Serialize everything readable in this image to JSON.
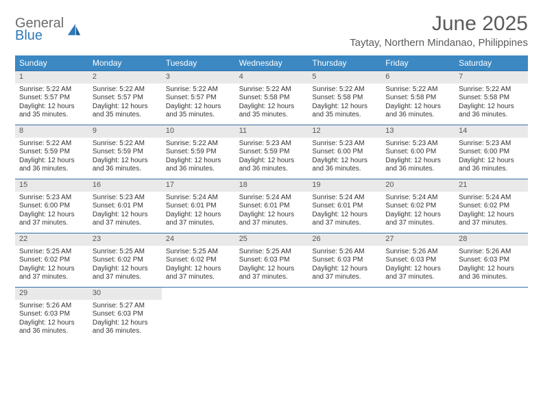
{
  "brand": {
    "general": "General",
    "blue": "Blue"
  },
  "title": "June 2025",
  "location": "Taytay, Northern Mindanao, Philippines",
  "colors": {
    "header_bg": "#3b88c3",
    "header_text": "#ffffff",
    "daynum_bg": "#e9e9e9",
    "week_border": "#2f6fa3",
    "title_color": "#5a5a5a",
    "logo_gray": "#6b6b6b",
    "logo_blue": "#2f78b7"
  },
  "dow": [
    "Sunday",
    "Monday",
    "Tuesday",
    "Wednesday",
    "Thursday",
    "Friday",
    "Saturday"
  ],
  "weeks": [
    [
      {
        "n": "1",
        "sr": "Sunrise: 5:22 AM",
        "ss": "Sunset: 5:57 PM",
        "d1": "Daylight: 12 hours",
        "d2": "and 35 minutes."
      },
      {
        "n": "2",
        "sr": "Sunrise: 5:22 AM",
        "ss": "Sunset: 5:57 PM",
        "d1": "Daylight: 12 hours",
        "d2": "and 35 minutes."
      },
      {
        "n": "3",
        "sr": "Sunrise: 5:22 AM",
        "ss": "Sunset: 5:57 PM",
        "d1": "Daylight: 12 hours",
        "d2": "and 35 minutes."
      },
      {
        "n": "4",
        "sr": "Sunrise: 5:22 AM",
        "ss": "Sunset: 5:58 PM",
        "d1": "Daylight: 12 hours",
        "d2": "and 35 minutes."
      },
      {
        "n": "5",
        "sr": "Sunrise: 5:22 AM",
        "ss": "Sunset: 5:58 PM",
        "d1": "Daylight: 12 hours",
        "d2": "and 35 minutes."
      },
      {
        "n": "6",
        "sr": "Sunrise: 5:22 AM",
        "ss": "Sunset: 5:58 PM",
        "d1": "Daylight: 12 hours",
        "d2": "and 36 minutes."
      },
      {
        "n": "7",
        "sr": "Sunrise: 5:22 AM",
        "ss": "Sunset: 5:58 PM",
        "d1": "Daylight: 12 hours",
        "d2": "and 36 minutes."
      }
    ],
    [
      {
        "n": "8",
        "sr": "Sunrise: 5:22 AM",
        "ss": "Sunset: 5:59 PM",
        "d1": "Daylight: 12 hours",
        "d2": "and 36 minutes."
      },
      {
        "n": "9",
        "sr": "Sunrise: 5:22 AM",
        "ss": "Sunset: 5:59 PM",
        "d1": "Daylight: 12 hours",
        "d2": "and 36 minutes."
      },
      {
        "n": "10",
        "sr": "Sunrise: 5:22 AM",
        "ss": "Sunset: 5:59 PM",
        "d1": "Daylight: 12 hours",
        "d2": "and 36 minutes."
      },
      {
        "n": "11",
        "sr": "Sunrise: 5:23 AM",
        "ss": "Sunset: 5:59 PM",
        "d1": "Daylight: 12 hours",
        "d2": "and 36 minutes."
      },
      {
        "n": "12",
        "sr": "Sunrise: 5:23 AM",
        "ss": "Sunset: 6:00 PM",
        "d1": "Daylight: 12 hours",
        "d2": "and 36 minutes."
      },
      {
        "n": "13",
        "sr": "Sunrise: 5:23 AM",
        "ss": "Sunset: 6:00 PM",
        "d1": "Daylight: 12 hours",
        "d2": "and 36 minutes."
      },
      {
        "n": "14",
        "sr": "Sunrise: 5:23 AM",
        "ss": "Sunset: 6:00 PM",
        "d1": "Daylight: 12 hours",
        "d2": "and 36 minutes."
      }
    ],
    [
      {
        "n": "15",
        "sr": "Sunrise: 5:23 AM",
        "ss": "Sunset: 6:00 PM",
        "d1": "Daylight: 12 hours",
        "d2": "and 37 minutes."
      },
      {
        "n": "16",
        "sr": "Sunrise: 5:23 AM",
        "ss": "Sunset: 6:01 PM",
        "d1": "Daylight: 12 hours",
        "d2": "and 37 minutes."
      },
      {
        "n": "17",
        "sr": "Sunrise: 5:24 AM",
        "ss": "Sunset: 6:01 PM",
        "d1": "Daylight: 12 hours",
        "d2": "and 37 minutes."
      },
      {
        "n": "18",
        "sr": "Sunrise: 5:24 AM",
        "ss": "Sunset: 6:01 PM",
        "d1": "Daylight: 12 hours",
        "d2": "and 37 minutes."
      },
      {
        "n": "19",
        "sr": "Sunrise: 5:24 AM",
        "ss": "Sunset: 6:01 PM",
        "d1": "Daylight: 12 hours",
        "d2": "and 37 minutes."
      },
      {
        "n": "20",
        "sr": "Sunrise: 5:24 AM",
        "ss": "Sunset: 6:02 PM",
        "d1": "Daylight: 12 hours",
        "d2": "and 37 minutes."
      },
      {
        "n": "21",
        "sr": "Sunrise: 5:24 AM",
        "ss": "Sunset: 6:02 PM",
        "d1": "Daylight: 12 hours",
        "d2": "and 37 minutes."
      }
    ],
    [
      {
        "n": "22",
        "sr": "Sunrise: 5:25 AM",
        "ss": "Sunset: 6:02 PM",
        "d1": "Daylight: 12 hours",
        "d2": "and 37 minutes."
      },
      {
        "n": "23",
        "sr": "Sunrise: 5:25 AM",
        "ss": "Sunset: 6:02 PM",
        "d1": "Daylight: 12 hours",
        "d2": "and 37 minutes."
      },
      {
        "n": "24",
        "sr": "Sunrise: 5:25 AM",
        "ss": "Sunset: 6:02 PM",
        "d1": "Daylight: 12 hours",
        "d2": "and 37 minutes."
      },
      {
        "n": "25",
        "sr": "Sunrise: 5:25 AM",
        "ss": "Sunset: 6:03 PM",
        "d1": "Daylight: 12 hours",
        "d2": "and 37 minutes."
      },
      {
        "n": "26",
        "sr": "Sunrise: 5:26 AM",
        "ss": "Sunset: 6:03 PM",
        "d1": "Daylight: 12 hours",
        "d2": "and 37 minutes."
      },
      {
        "n": "27",
        "sr": "Sunrise: 5:26 AM",
        "ss": "Sunset: 6:03 PM",
        "d1": "Daylight: 12 hours",
        "d2": "and 37 minutes."
      },
      {
        "n": "28",
        "sr": "Sunrise: 5:26 AM",
        "ss": "Sunset: 6:03 PM",
        "d1": "Daylight: 12 hours",
        "d2": "and 36 minutes."
      }
    ],
    [
      {
        "n": "29",
        "sr": "Sunrise: 5:26 AM",
        "ss": "Sunset: 6:03 PM",
        "d1": "Daylight: 12 hours",
        "d2": "and 36 minutes."
      },
      {
        "n": "30",
        "sr": "Sunrise: 5:27 AM",
        "ss": "Sunset: 6:03 PM",
        "d1": "Daylight: 12 hours",
        "d2": "and 36 minutes."
      },
      null,
      null,
      null,
      null,
      null
    ]
  ]
}
